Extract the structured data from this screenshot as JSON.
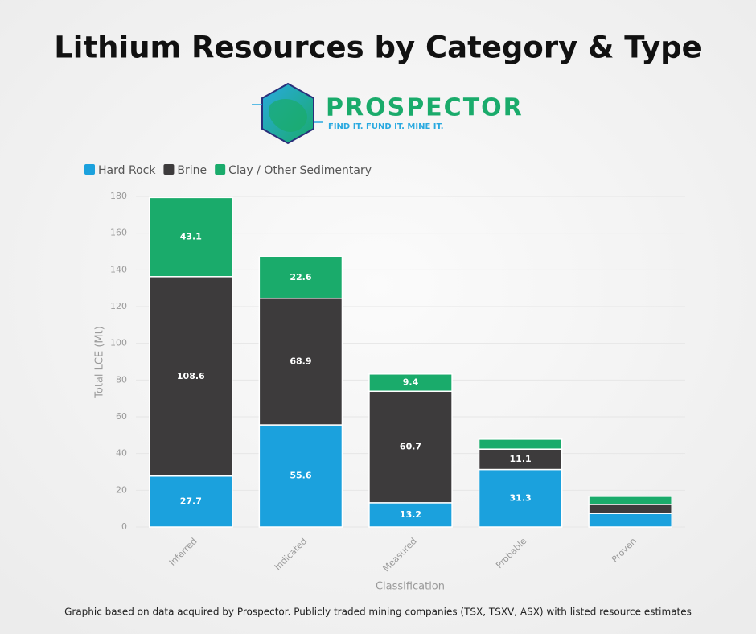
{
  "chart_data": {
    "type": "stacked-bar",
    "title": "Lithium Resources by Category & Type",
    "x_label": "Classification",
    "y_label": "Total LCE (Mt)",
    "categories": [
      "Inferred",
      "Indicated",
      "Measured",
      "Probable",
      "Proven"
    ],
    "series": [
      {
        "name": "Hard Rock",
        "color": "#1ba1dd",
        "values": [
          27.7,
          55.6,
          13.2,
          31.3,
          7.4
        ],
        "value_labels": [
          "27.7",
          "55.6",
          "13.2",
          "31.3",
          null
        ]
      },
      {
        "name": "Brine",
        "color": "#3d3b3c",
        "values": [
          108.6,
          68.9,
          60.7,
          11.1,
          4.9
        ],
        "value_labels": [
          "108.6",
          "68.9",
          "60.7",
          "11.1",
          null
        ]
      },
      {
        "name": "Clay / Other Sedimentary",
        "color": "#1aab6b",
        "values": [
          43.1,
          22.6,
          9.4,
          5.4,
          4.4
        ],
        "value_labels": [
          "43.1",
          "22.6",
          "9.4",
          null,
          null
        ]
      }
    ],
    "ylim": [
      0,
      180
    ],
    "yticks": [
      0,
      20,
      40,
      60,
      80,
      100,
      120,
      140,
      160,
      180
    ],
    "grid": true,
    "legend": "top-left"
  },
  "logo": {
    "name": "PROSPECTOR",
    "tagline": "FIND IT. FUND IT. MINE IT."
  },
  "footer": "Graphic based on data acquired by Prospector. Publicly traded mining companies (TSX, TSXV, ASX) with listed resource estimates"
}
